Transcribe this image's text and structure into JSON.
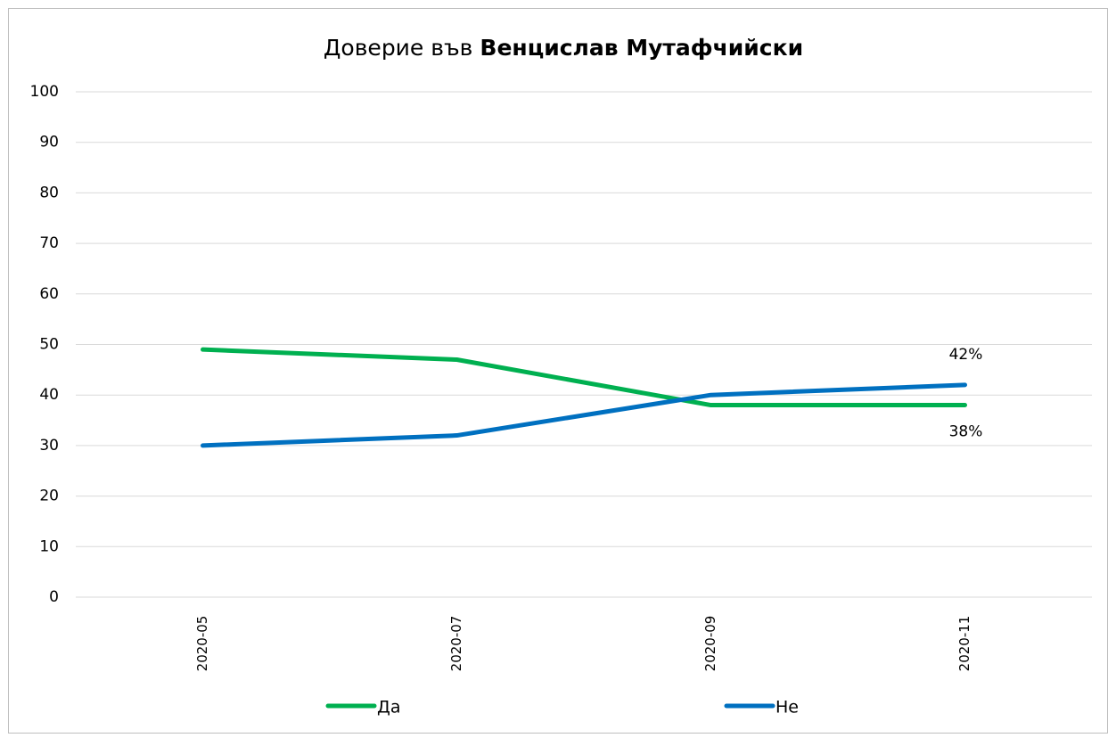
{
  "chart_data": {
    "type": "line",
    "title_parts": [
      "Доверие във",
      "Венцислав Мутафчийски"
    ],
    "categories": [
      "2020-05",
      "2020-07",
      "2020-09",
      "2020-11"
    ],
    "series": [
      {
        "name": "Да",
        "color": "#00b050",
        "values": [
          49,
          47,
          38,
          38
        ],
        "value_labels": [
          null,
          null,
          null,
          "38%"
        ]
      },
      {
        "name": "Не",
        "color": "#0070c0",
        "values": [
          30,
          32,
          40,
          42
        ],
        "value_labels": [
          null,
          null,
          null,
          "42%"
        ]
      }
    ],
    "ylim": [
      0,
      100
    ],
    "yticks": [
      0,
      10,
      20,
      30,
      40,
      50,
      60,
      70,
      80,
      90,
      100
    ],
    "grid": true,
    "legend": "bottom"
  }
}
